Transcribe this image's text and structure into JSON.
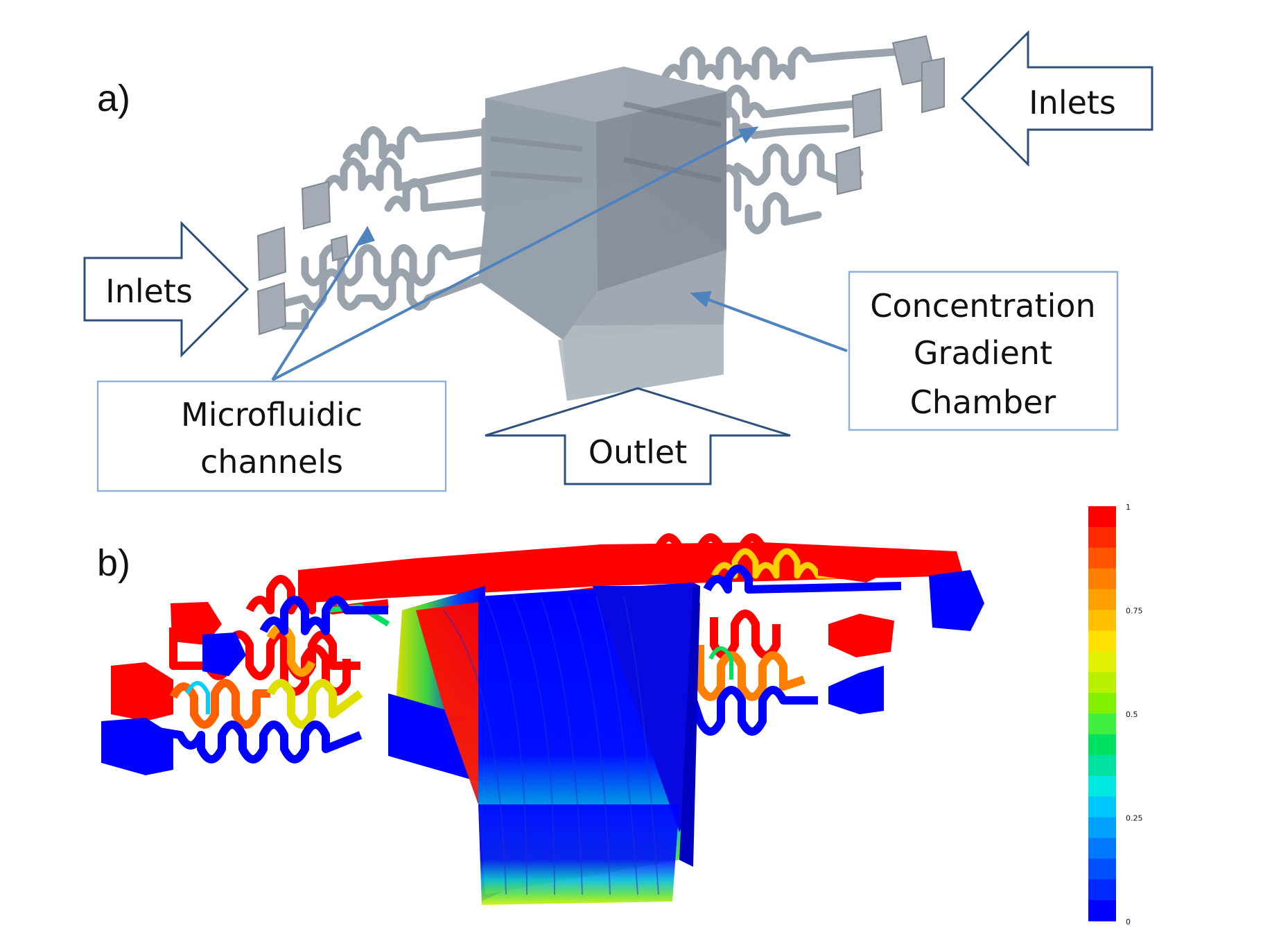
{
  "panel_a": {
    "label": "a)",
    "inlets_left": "Inlets",
    "inlets_right": "Inlets",
    "outlet": "Outlet",
    "microfluidic_line1": "Microfluidic",
    "microfluidic_line2": "channels",
    "chamber_line1": "Concentration",
    "chamber_line2": "Gradient",
    "chamber_line3": "Chamber"
  },
  "panel_b": {
    "label": "b)",
    "colorbar": {
      "ticks": [
        "1",
        "0.75",
        "0.5",
        "0.25",
        "0"
      ],
      "colors": [
        "#ff0000",
        "#ff2a00",
        "#ff5500",
        "#ff8000",
        "#ffa000",
        "#ffc000",
        "#ffe000",
        "#e0f000",
        "#b8f000",
        "#80f000",
        "#40f040",
        "#00e060",
        "#00e0a0",
        "#00e8e0",
        "#00c8ff",
        "#00a0ff",
        "#0078ff",
        "#0050ff",
        "#0028ff",
        "#0000ff"
      ]
    }
  },
  "colors": {
    "arrow_stroke": "#2c4f7c",
    "pointer": "#4f83bd",
    "gray_body": "#8c949e",
    "red": "#ff0000",
    "blue": "#0000ff"
  }
}
